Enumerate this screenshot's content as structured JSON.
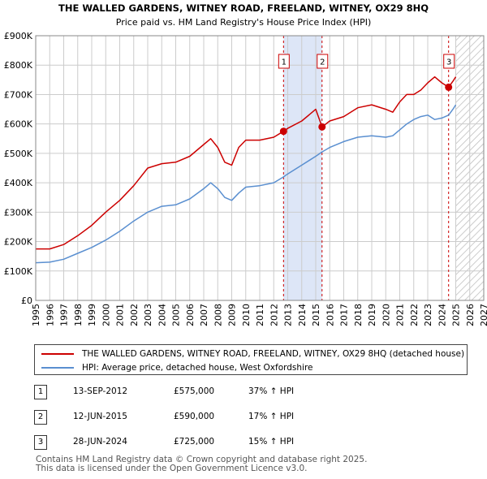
{
  "chart_data": {
    "type": "line",
    "title": "THE WALLED GARDENS, WITNEY ROAD, FREELAND, WITNEY, OX29 8HQ",
    "subtitle": "Price paid vs. HM Land Registry's House Price Index (HPI)",
    "xlim": [
      1995,
      2027
    ],
    "ylim": [
      0,
      900000
    ],
    "x_ticks": [
      1995,
      1996,
      1997,
      1998,
      1999,
      2000,
      2001,
      2002,
      2003,
      2004,
      2005,
      2006,
      2007,
      2008,
      2009,
      2010,
      2011,
      2012,
      2013,
      2014,
      2015,
      2016,
      2017,
      2018,
      2019,
      2020,
      2021,
      2022,
      2023,
      2024,
      2025,
      2026,
      2027
    ],
    "y_ticks": [
      0,
      100000,
      200000,
      300000,
      400000,
      500000,
      600000,
      700000,
      800000,
      900000
    ],
    "y_tick_labels": [
      "£0",
      "£100K",
      "£200K",
      "£300K",
      "£400K",
      "£500K",
      "£600K",
      "£700K",
      "£800K",
      "£900K"
    ],
    "projection_start": 2025.0,
    "shaded_span": [
      2012.7,
      2015.45
    ],
    "series": [
      {
        "name": "THE WALLED GARDENS, WITNEY ROAD, FREELAND, WITNEY, OX29 8HQ (detached house)",
        "color": "#cc0000",
        "x": [
          1995.0,
          1996.0,
          1997.0,
          1998.0,
          1999.0,
          2000.0,
          2001.0,
          2002.0,
          2003.0,
          2004.0,
          2005.0,
          2006.0,
          2007.0,
          2007.5,
          2008.0,
          2008.5,
          2009.0,
          2009.5,
          2010.0,
          2011.0,
          2012.0,
          2012.7,
          2013.0,
          2014.0,
          2015.0,
          2015.45,
          2016.0,
          2017.0,
          2018.0,
          2019.0,
          2020.0,
          2020.5,
          2021.0,
          2021.5,
          2022.0,
          2022.5,
          2023.0,
          2023.5,
          2024.0,
          2024.49,
          2024.8,
          2025.0
        ],
        "values": [
          175000,
          175000,
          190000,
          220000,
          255000,
          300000,
          340000,
          390000,
          450000,
          465000,
          470000,
          490000,
          530000,
          550000,
          520000,
          470000,
          460000,
          520000,
          545000,
          545000,
          555000,
          575000,
          585000,
          610000,
          650000,
          590000,
          610000,
          625000,
          655000,
          665000,
          650000,
          640000,
          675000,
          700000,
          700000,
          715000,
          740000,
          760000,
          740000,
          725000,
          745000,
          760000
        ]
      },
      {
        "name": "HPI: Average price, detached house, West Oxfordshire",
        "color": "#5a8fd0",
        "x": [
          1995.0,
          1996.0,
          1997.0,
          1998.0,
          1999.0,
          2000.0,
          2001.0,
          2002.0,
          2003.0,
          2004.0,
          2005.0,
          2006.0,
          2007.0,
          2007.5,
          2008.0,
          2008.5,
          2009.0,
          2009.5,
          2010.0,
          2011.0,
          2012.0,
          2012.7,
          2013.0,
          2014.0,
          2015.0,
          2015.45,
          2016.0,
          2017.0,
          2018.0,
          2019.0,
          2020.0,
          2020.5,
          2021.0,
          2021.5,
          2022.0,
          2022.5,
          2023.0,
          2023.5,
          2024.0,
          2024.49,
          2024.8,
          2025.0
        ],
        "values": [
          128000,
          130000,
          140000,
          160000,
          180000,
          205000,
          235000,
          270000,
          300000,
          320000,
          325000,
          345000,
          380000,
          400000,
          380000,
          350000,
          340000,
          365000,
          385000,
          390000,
          400000,
          420000,
          430000,
          460000,
          490000,
          505000,
          520000,
          540000,
          555000,
          560000,
          555000,
          560000,
          580000,
          600000,
          615000,
          625000,
          630000,
          615000,
          620000,
          630000,
          650000,
          665000
        ]
      }
    ],
    "transactions": [
      {
        "marker": "1",
        "date": "13-SEP-2012",
        "price": "£575,000",
        "hpi": "37% ↑ HPI",
        "x": 2012.7,
        "value": 575000
      },
      {
        "marker": "2",
        "date": "12-JUN-2015",
        "price": "£590,000",
        "hpi": "17% ↑ HPI",
        "x": 2015.45,
        "value": 590000
      },
      {
        "marker": "3",
        "date": "28-JUN-2024",
        "price": "£725,000",
        "hpi": "15% ↑ HPI",
        "x": 2024.49,
        "value": 725000
      }
    ]
  },
  "legend": {
    "property_label": "THE WALLED GARDENS, WITNEY ROAD, FREELAND, WITNEY, OX29 8HQ (detached house)",
    "hpi_label": "HPI: Average price, detached house, West Oxfordshire"
  },
  "footer": {
    "line1": "Contains HM Land Registry data © Crown copyright and database right 2025.",
    "line2": "This data is licensed under the Open Government Licence v3.0."
  },
  "colors": {
    "property": "#cc0000",
    "hpi": "#5a8fd0",
    "span": "#dde6f7",
    "grid": "#cccccc",
    "marker_line": "#cc0000"
  }
}
